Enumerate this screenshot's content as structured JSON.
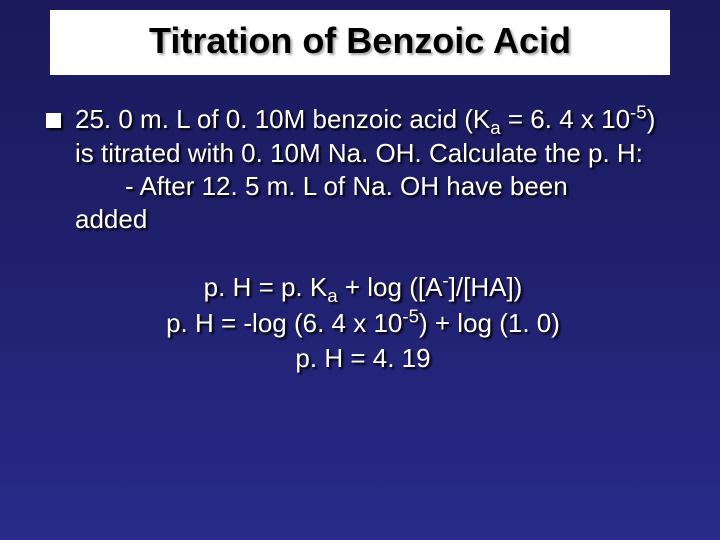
{
  "slide": {
    "title": "Titration of Benzoic Acid",
    "background_gradient": [
      "#1a1a5c",
      "#1f1f6a",
      "#2a2a8a"
    ],
    "title_bg": "#ffffff",
    "title_color": "#000000",
    "text_color": "#ffffff",
    "title_fontsize": 36,
    "body_fontsize": 26,
    "bullet": {
      "line1a": "25. 0 m. L of 0. 10M benzoic acid (K",
      "line1_sub": "a",
      "line1b": " = 6. 4 x ",
      "line2a": "10",
      "line2_sup": "-5",
      "line2b": ") is titrated with 0. 10M Na. OH. ",
      "line3": "Calculate the p. H:",
      "sub1": "- After 12. 5 m. L of Na. OH have been ",
      "sub2": "added"
    },
    "equations": {
      "eq1a": "p. H = p. K",
      "eq1_sub": "a",
      "eq1b": " + log ([A",
      "eq1_sup": "-",
      "eq1c": "]/[HA])",
      "eq2a": "p. H = -log (6. 4 x 10",
      "eq2_sup": "-5",
      "eq2b": ") + log (1. 0)",
      "eq3": "p. H = 4. 19"
    }
  }
}
